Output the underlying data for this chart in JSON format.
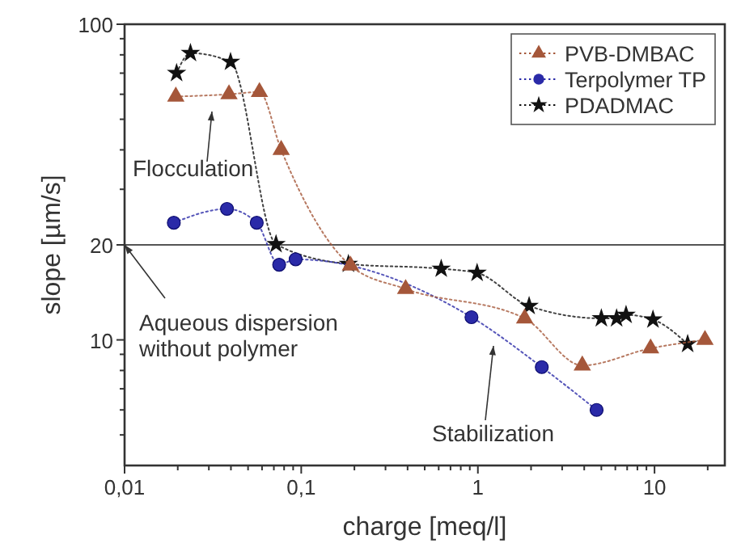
{
  "chart_data": {
    "type": "line",
    "xlabel": "charge [meq/l]",
    "ylabel": "slope [µm/s]",
    "log": "xy",
    "line_style": "dotted",
    "legend": "top right",
    "grid": false,
    "xlim": [
      0.01,
      25
    ],
    "xticks": [
      {
        "value": 0.01,
        "label": "0,01"
      },
      {
        "value": 0.02,
        "label": null
      },
      {
        "value": 0.03,
        "label": null
      },
      {
        "value": 0.04,
        "label": null
      },
      {
        "value": 0.05,
        "label": null
      },
      {
        "value": 0.06,
        "label": null
      },
      {
        "value": 0.07,
        "label": null
      },
      {
        "value": 0.08,
        "label": null
      },
      {
        "value": 0.09,
        "label": null
      },
      {
        "value": 0.1,
        "label": "0,1"
      },
      {
        "value": 0.2,
        "label": null
      },
      {
        "value": 0.3,
        "label": null
      },
      {
        "value": 0.4,
        "label": null
      },
      {
        "value": 0.5,
        "label": null
      },
      {
        "value": 0.6,
        "label": null
      },
      {
        "value": 0.7,
        "label": null
      },
      {
        "value": 0.8,
        "label": null
      },
      {
        "value": 0.9,
        "label": null
      },
      {
        "value": 1,
        "label": "1"
      },
      {
        "value": 2,
        "label": null
      },
      {
        "value": 3,
        "label": null
      },
      {
        "value": 4,
        "label": null
      },
      {
        "value": 5,
        "label": null
      },
      {
        "value": 6,
        "label": null
      },
      {
        "value": 7,
        "label": null
      },
      {
        "value": 8,
        "label": null
      },
      {
        "value": 9,
        "label": null
      },
      {
        "value": 10,
        "label": "10"
      },
      {
        "value": 20,
        "label": null
      }
    ],
    "ylim": [
      4,
      100
    ],
    "yticks": [
      {
        "value": 5,
        "label": null
      },
      {
        "value": 6,
        "label": null
      },
      {
        "value": 7,
        "label": null
      },
      {
        "value": 8,
        "label": null
      },
      {
        "value": 9,
        "label": null
      },
      10,
      20,
      {
        "value": 30,
        "label": null
      },
      {
        "value": 40,
        "label": null
      },
      {
        "value": 50,
        "label": null
      },
      {
        "value": 60,
        "label": null
      },
      {
        "value": 70,
        "label": null
      },
      {
        "value": 80,
        "label": null
      },
      {
        "value": 90,
        "label": null
      },
      100
    ],
    "series": [
      {
        "name": "PVB-DMBAC",
        "color": "#a5573a",
        "marker": "triangle",
        "x": [
          0.0195,
          0.039,
          0.058,
          0.077,
          0.19,
          0.39,
          1.84,
          3.9,
          9.5,
          19.3
        ],
        "values": [
          59,
          60,
          61,
          40,
          17.2,
          14.5,
          11.7,
          8.3,
          9.4,
          10
        ]
      },
      {
        "name": "Terpolymer TP",
        "color": "#2a2aa8",
        "marker": "circle",
        "x": [
          0.019,
          0.038,
          0.056,
          0.075,
          0.093,
          0.92,
          2.3,
          4.7
        ],
        "values": [
          23.5,
          26,
          23.5,
          17.3,
          18,
          11.8,
          8.2,
          6
        ]
      },
      {
        "name": "PDADMAC",
        "color": "#111111",
        "marker": "star",
        "x": [
          0.0197,
          0.0236,
          0.0398,
          0.072,
          0.185,
          0.62,
          0.99,
          1.95,
          5,
          6.1,
          6.9,
          9.8,
          15.4
        ],
        "values": [
          70,
          81,
          76,
          20.1,
          17.4,
          16.8,
          16.3,
          12.8,
          11.7,
          11.7,
          12,
          11.6,
          9.7
        ]
      }
    ],
    "ref_lines": [
      {
        "axis": "y",
        "value": 20,
        "color": "#555555",
        "line_style": "solid"
      }
    ],
    "annotations": [
      "Flocculation",
      {
        "text": "Aqueous dispersion\nwithout polymer",
        "x": 0.01,
        "y": 20
      },
      "Stabilization"
    ]
  }
}
